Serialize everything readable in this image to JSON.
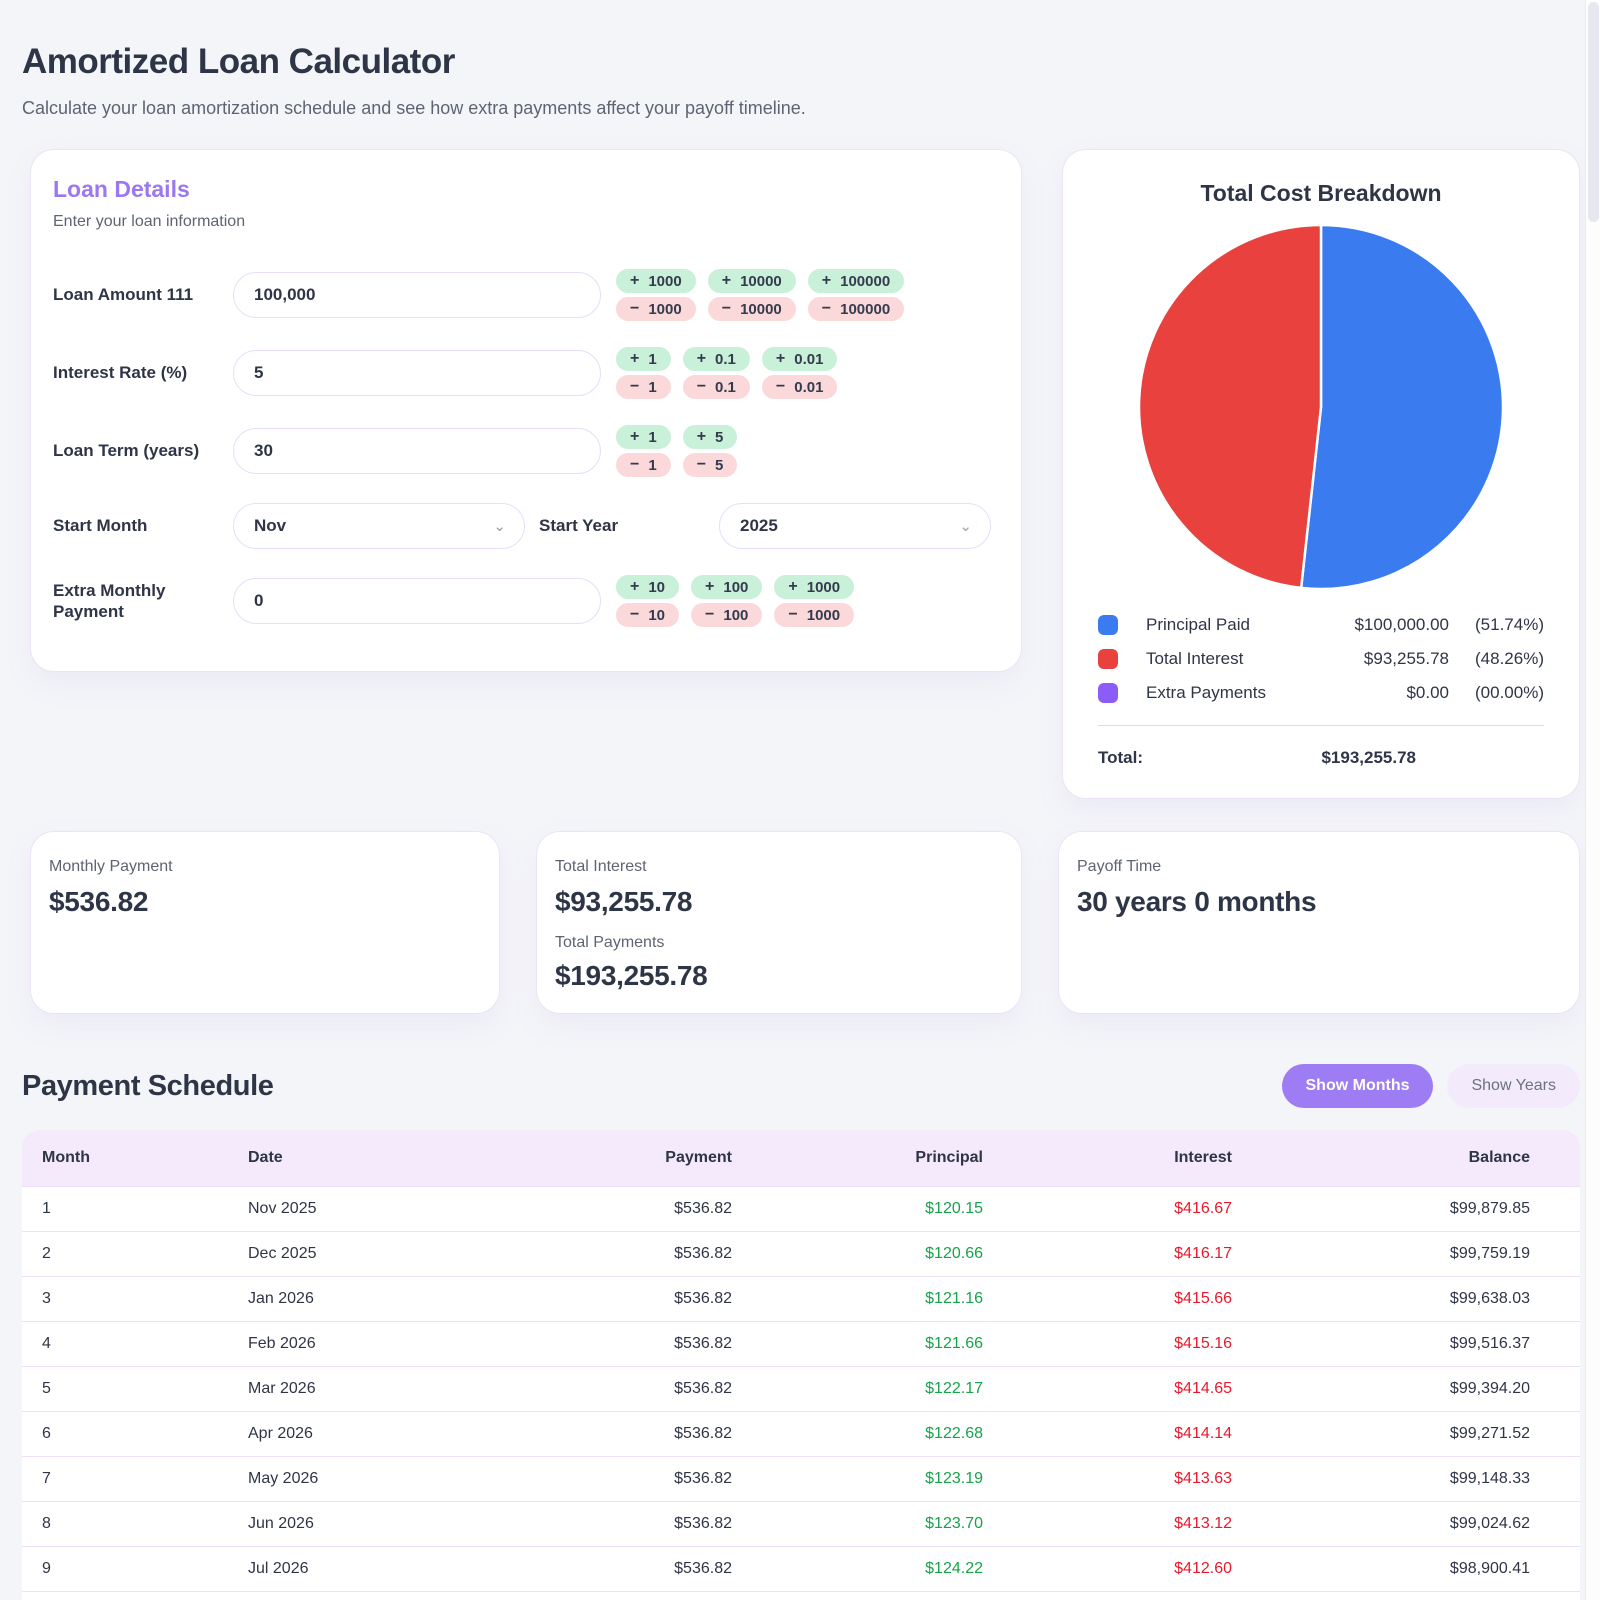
{
  "page": {
    "title": "Amortized Loan Calculator",
    "subtitle": "Calculate your loan amortization schedule and see how extra payments affect your payoff timeline."
  },
  "loan": {
    "title": "Loan Details",
    "subtitle": "Enter your loan information",
    "amount": {
      "label": "Loan Amount 111",
      "value": "100,000",
      "steppers": [
        {
          "inc": "1000",
          "dec": "1000"
        },
        {
          "inc": "10000",
          "dec": "10000"
        },
        {
          "inc": "100000",
          "dec": "100000"
        }
      ]
    },
    "rate": {
      "label": "Interest Rate (%)",
      "value": "5",
      "steppers": [
        {
          "inc": "1",
          "dec": "1"
        },
        {
          "inc": "0.1",
          "dec": "0.1"
        },
        {
          "inc": "0.01",
          "dec": "0.01"
        }
      ]
    },
    "term": {
      "label": "Loan Term (years)",
      "value": "30",
      "steppers": [
        {
          "inc": "1",
          "dec": "1"
        },
        {
          "inc": "5",
          "dec": "5"
        }
      ]
    },
    "start_month": {
      "label": "Start Month",
      "value": "Nov"
    },
    "start_year": {
      "label": "Start Year",
      "value": "2025"
    },
    "extra": {
      "label": "Extra Monthly Payment",
      "value": "0",
      "steppers": [
        {
          "inc": "10",
          "dec": "10"
        },
        {
          "inc": "100",
          "dec": "100"
        },
        {
          "inc": "1000",
          "dec": "1000"
        }
      ]
    }
  },
  "breakdown": {
    "title": "Total Cost Breakdown",
    "legend": [
      {
        "label": "Principal Paid",
        "value": "$100,000.00",
        "percent": "(51.74%)",
        "color": "#3b7bf0"
      },
      {
        "label": "Total Interest",
        "value": "$93,255.78",
        "percent": "(48.26%)",
        "color": "#e8413e"
      },
      {
        "label": "Extra Payments",
        "value": "$0.00",
        "percent": "(00.00%)",
        "color": "#8b5cf6"
      }
    ],
    "total_label": "Total:",
    "total_value": "$193,255.78"
  },
  "chart_data": {
    "type": "pie",
    "title": "Total Cost Breakdown",
    "slices": [
      {
        "label": "Principal Paid",
        "value": 100000.0,
        "percent": 51.74,
        "color": "#3b7bf0"
      },
      {
        "label": "Total Interest",
        "value": 93255.78,
        "percent": 48.26,
        "color": "#e8413e"
      },
      {
        "label": "Extra Payments",
        "value": 0.0,
        "percent": 0.0,
        "color": "#8b5cf6"
      }
    ],
    "total": 193255.78,
    "start_angle_deg": -90,
    "direction": "clockwise",
    "legend_position": "bottom"
  },
  "summary": {
    "monthly": {
      "label": "Monthly Payment",
      "value": "$536.82"
    },
    "totals": {
      "interest_label": "Total Interest",
      "interest_value": "$93,255.78",
      "payments_label": "Total Payments",
      "payments_value": "$193,255.78"
    },
    "payoff": {
      "label": "Payoff Time",
      "value": "30 years 0 months"
    }
  },
  "schedule": {
    "title": "Payment Schedule",
    "show_months": "Show Months",
    "show_years": "Show Years",
    "columns": [
      "Month",
      "Date",
      "Payment",
      "Principal",
      "Interest",
      "Balance"
    ],
    "rows": [
      {
        "month": "1",
        "date": "Nov 2025",
        "payment": "$536.82",
        "principal": "$120.15",
        "interest": "$416.67",
        "balance": "$99,879.85"
      },
      {
        "month": "2",
        "date": "Dec 2025",
        "payment": "$536.82",
        "principal": "$120.66",
        "interest": "$416.17",
        "balance": "$99,759.19"
      },
      {
        "month": "3",
        "date": "Jan 2026",
        "payment": "$536.82",
        "principal": "$121.16",
        "interest": "$415.66",
        "balance": "$99,638.03"
      },
      {
        "month": "4",
        "date": "Feb 2026",
        "payment": "$536.82",
        "principal": "$121.66",
        "interest": "$415.16",
        "balance": "$99,516.37"
      },
      {
        "month": "5",
        "date": "Mar 2026",
        "payment": "$536.82",
        "principal": "$122.17",
        "interest": "$414.65",
        "balance": "$99,394.20"
      },
      {
        "month": "6",
        "date": "Apr 2026",
        "payment": "$536.82",
        "principal": "$122.68",
        "interest": "$414.14",
        "balance": "$99,271.52"
      },
      {
        "month": "7",
        "date": "May 2026",
        "payment": "$536.82",
        "principal": "$123.19",
        "interest": "$413.63",
        "balance": "$99,148.33"
      },
      {
        "month": "8",
        "date": "Jun 2026",
        "payment": "$536.82",
        "principal": "$123.70",
        "interest": "$413.12",
        "balance": "$99,024.62"
      },
      {
        "month": "9",
        "date": "Jul 2026",
        "payment": "$536.82",
        "principal": "$124.22",
        "interest": "$412.60",
        "balance": "$98,900.41"
      }
    ]
  },
  "colors": {
    "accent_purple": "#9b78f0",
    "positive_green": "#17a34a",
    "negative_red": "#e8192d",
    "pie_blue": "#3b7bf0",
    "pie_red": "#e8413e",
    "pie_purple": "#8b5cf6"
  }
}
